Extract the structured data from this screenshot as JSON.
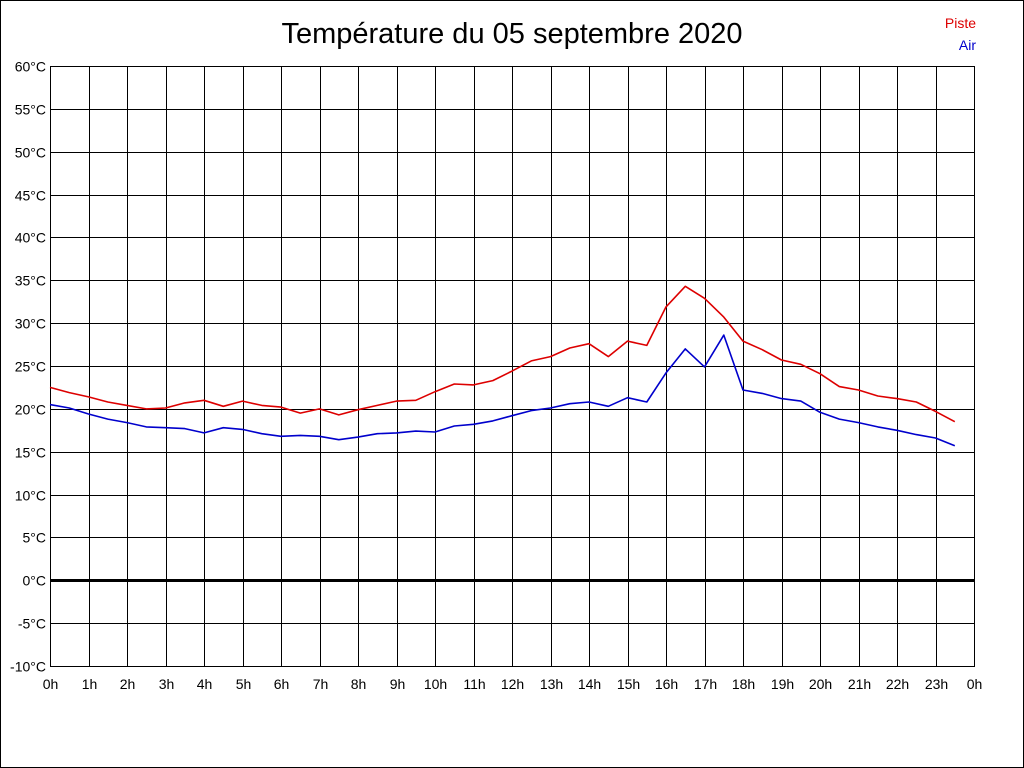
{
  "chart_data": {
    "type": "line",
    "title": "Température du 05 septembre 2020",
    "x_tick_labels": [
      "0h",
      "1h",
      "2h",
      "3h",
      "4h",
      "5h",
      "6h",
      "7h",
      "8h",
      "9h",
      "10h",
      "11h",
      "12h",
      "13h",
      "14h",
      "15h",
      "16h",
      "17h",
      "18h",
      "19h",
      "20h",
      "21h",
      "22h",
      "23h",
      "0h"
    ],
    "y_tick_labels": [
      "-10°C",
      "-5°C",
      "0°C",
      "5°C",
      "10°C",
      "15°C",
      "20°C",
      "25°C",
      "30°C",
      "35°C",
      "40°C",
      "45°C",
      "50°C",
      "55°C",
      "60°C"
    ],
    "xlim": [
      0,
      24
    ],
    "ylim": [
      -10,
      60
    ],
    "grid": true,
    "legend_position": "top-right",
    "x": [
      0,
      0.5,
      1,
      1.5,
      2,
      2.5,
      3,
      3.5,
      4,
      4.5,
      5,
      5.5,
      6,
      6.5,
      7,
      7.5,
      8,
      8.5,
      9,
      9.5,
      10,
      10.5,
      11,
      11.5,
      12,
      12.5,
      13,
      13.5,
      14,
      14.5,
      15,
      15.5,
      16,
      16.5,
      17,
      17.5,
      18,
      18.5,
      19,
      19.5,
      20,
      20.5,
      21,
      21.5,
      22,
      22.5,
      23,
      23.5
    ],
    "series": [
      {
        "name": "Piste",
        "color": "#dd0000",
        "values": [
          22.5,
          21.9,
          21.4,
          20.8,
          20.4,
          20.0,
          20.1,
          20.7,
          21.0,
          20.3,
          20.9,
          20.4,
          20.2,
          19.5,
          20.0,
          19.3,
          19.9,
          20.4,
          20.9,
          21.0,
          22.0,
          22.9,
          22.8,
          23.3,
          24.4,
          25.6,
          26.1,
          27.1,
          27.6,
          26.1,
          27.9,
          27.4,
          31.9,
          34.3,
          32.9,
          30.7,
          27.9,
          26.9,
          25.7,
          25.2,
          24.1,
          22.6,
          22.2,
          21.5,
          21.2,
          20.8,
          19.7,
          18.5
        ]
      },
      {
        "name": "Air",
        "color": "#0000cc",
        "values": [
          20.5,
          20.1,
          19.4,
          18.8,
          18.4,
          17.9,
          17.8,
          17.7,
          17.2,
          17.8,
          17.6,
          17.1,
          16.8,
          16.9,
          16.8,
          16.4,
          16.7,
          17.1,
          17.2,
          17.4,
          17.3,
          18.0,
          18.2,
          18.6,
          19.2,
          19.8,
          20.1,
          20.6,
          20.8,
          20.3,
          21.3,
          20.8,
          24.2,
          27.0,
          24.9,
          28.6,
          22.2,
          21.8,
          21.2,
          20.9,
          19.6,
          18.8,
          18.4,
          17.9,
          17.5,
          17.0,
          16.6,
          15.7
        ]
      }
    ]
  }
}
